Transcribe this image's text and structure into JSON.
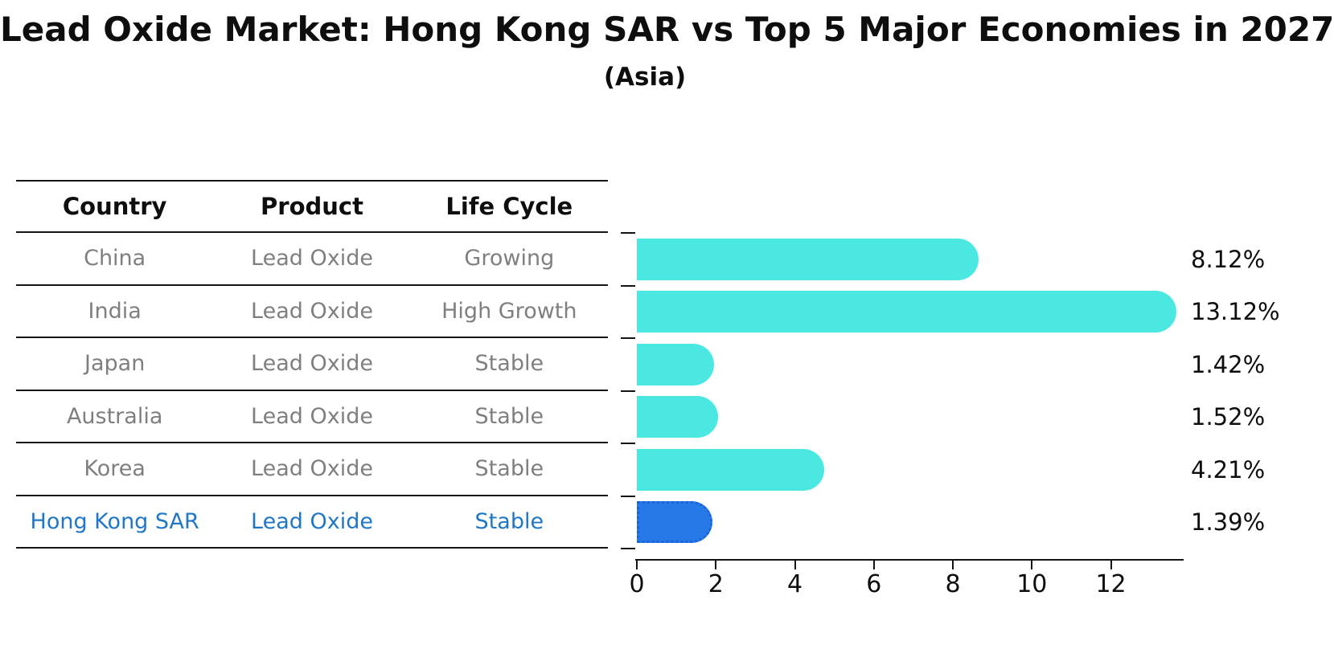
{
  "title": "Lead Oxide Market: Hong Kong SAR vs Top 5 Major Economies in 2027",
  "subtitle": "(Asia)",
  "table": {
    "columns": [
      "Country",
      "Product",
      "Life Cycle"
    ],
    "rows": [
      {
        "country": "China",
        "product": "Lead Oxide",
        "life_cycle": "Growing",
        "highlight": false
      },
      {
        "country": "India",
        "product": "Lead Oxide",
        "life_cycle": "High Growth",
        "highlight": false
      },
      {
        "country": "Japan",
        "product": "Lead Oxide",
        "life_cycle": "Stable",
        "highlight": false
      },
      {
        "country": "Australia",
        "product": "Lead Oxide",
        "life_cycle": "Stable",
        "highlight": false
      },
      {
        "country": "Korea",
        "product": "Lead Oxide",
        "life_cycle": "Stable",
        "highlight": false
      },
      {
        "country": "Hong Kong SAR",
        "product": "Lead Oxide",
        "life_cycle": "Stable",
        "highlight": true
      }
    ]
  },
  "chart_data": {
    "type": "bar",
    "orientation": "horizontal",
    "title": "Lead Oxide Market: Hong Kong SAR vs Top 5 Major Economies in 2027",
    "subtitle": "(Asia)",
    "categories": [
      "China",
      "India",
      "Japan",
      "Australia",
      "Korea",
      "Hong Kong SAR"
    ],
    "values": [
      8.12,
      13.12,
      1.42,
      1.52,
      4.21,
      1.39
    ],
    "value_labels": [
      "8.12%",
      "13.12%",
      "1.42%",
      "1.52%",
      "4.21%",
      "1.39%"
    ],
    "xlabel": "",
    "ylabel": "",
    "xlim": [
      0,
      13.8
    ],
    "xticks": [
      0,
      2,
      4,
      6,
      8,
      10,
      12
    ],
    "grid": false,
    "legend": "none",
    "highlight_index": 5
  },
  "colors": {
    "bar": "#4AE8E1",
    "highlight_bar": "#2879E8",
    "highlight_border": "#1A64D8",
    "highlight_text": "#2077C8",
    "row_text": "#7F7F7F",
    "header_text": "#0E0E0E",
    "axis": "#141414"
  }
}
